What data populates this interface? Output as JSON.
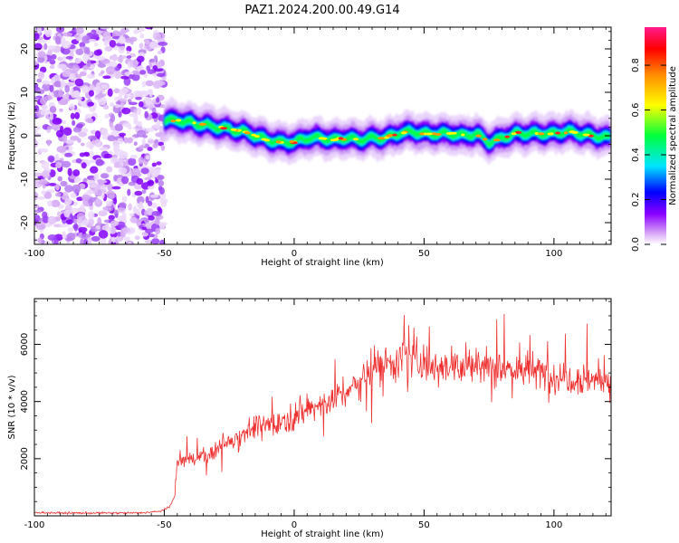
{
  "title": "PAZ1.2024.200.00.49.G14",
  "chart_data": [
    {
      "type": "heatmap",
      "xlabel": "Height of straight line (km)",
      "ylabel": "Frequency (Hz)",
      "xlim": [
        -100,
        122
      ],
      "ylim": [
        -25,
        25
      ],
      "xticks": [
        -100,
        -50,
        0,
        50,
        100
      ],
      "yticks": [
        -20,
        -10,
        0,
        10,
        20
      ],
      "noise_region_x": [
        -100,
        -50
      ],
      "ridge": {
        "x": [
          -50,
          -45,
          -40,
          -35,
          -30,
          -25,
          -20,
          -15,
          -10,
          -5,
          0,
          5,
          10,
          15,
          20,
          25,
          30,
          35,
          40,
          45,
          50,
          55,
          60,
          65,
          70,
          75,
          80,
          85,
          90,
          95,
          100,
          105,
          110,
          115,
          122
        ],
        "frequency": [
          3.5,
          3.5,
          3,
          2.5,
          2,
          1.5,
          1,
          0,
          -1,
          -1.5,
          -1.5,
          -0.5,
          -0.5,
          -1,
          -0.5,
          -1,
          -0.5,
          -0.5,
          0.5,
          1,
          0.5,
          0.5,
          0.5,
          0,
          0.5,
          -1.5,
          -0.5,
          0.5,
          0.5,
          0.5,
          0.5,
          1,
          0.5,
          0,
          -0.5
        ]
      },
      "colorbar": {
        "label": "Normalized spectral amplitude",
        "ticks": [
          "0.0",
          "0.2",
          "0.4",
          "0.6",
          "0.8"
        ],
        "range": [
          0,
          0.97
        ],
        "colors": [
          "#ffffff",
          "#d9a8f5",
          "#8a00ff",
          "#0000ff",
          "#00e5ff",
          "#00ff3c",
          "#ffff00",
          "#ff8c00",
          "#ff0000",
          "#ff1a8c"
        ]
      }
    },
    {
      "type": "line",
      "xlabel": "Height of straight line (km)",
      "ylabel": "SNR (10 * v/v)",
      "xlim": [
        -100,
        122
      ],
      "ylim": [
        0,
        7600
      ],
      "xticks": [
        -100,
        -50,
        0,
        50,
        100
      ],
      "yticks": [
        2000,
        4000,
        6000
      ],
      "series": [
        {
          "color": "#ee3030",
          "x": [
            -100,
            -90,
            -80,
            -70,
            -60,
            -52,
            -48,
            -46,
            -45,
            -40,
            -35,
            -30,
            -25,
            -20,
            -15,
            -10,
            -5,
            0,
            5,
            10,
            15,
            20,
            25,
            30,
            35,
            40,
            45,
            50,
            55,
            60,
            65,
            70,
            75,
            80,
            85,
            90,
            95,
            100,
            105,
            110,
            115,
            122
          ],
          "y": [
            120,
            100,
            100,
            100,
            100,
            150,
            300,
            700,
            1900,
            2000,
            2100,
            2300,
            2600,
            2900,
            3100,
            3200,
            3300,
            3500,
            3700,
            3900,
            4100,
            4300,
            4700,
            5100,
            5400,
            5500,
            5500,
            5400,
            5300,
            5300,
            5200,
            5200,
            5300,
            5200,
            5100,
            5100,
            5000,
            4900,
            4900,
            4800,
            4800,
            4700
          ]
        }
      ]
    }
  ]
}
